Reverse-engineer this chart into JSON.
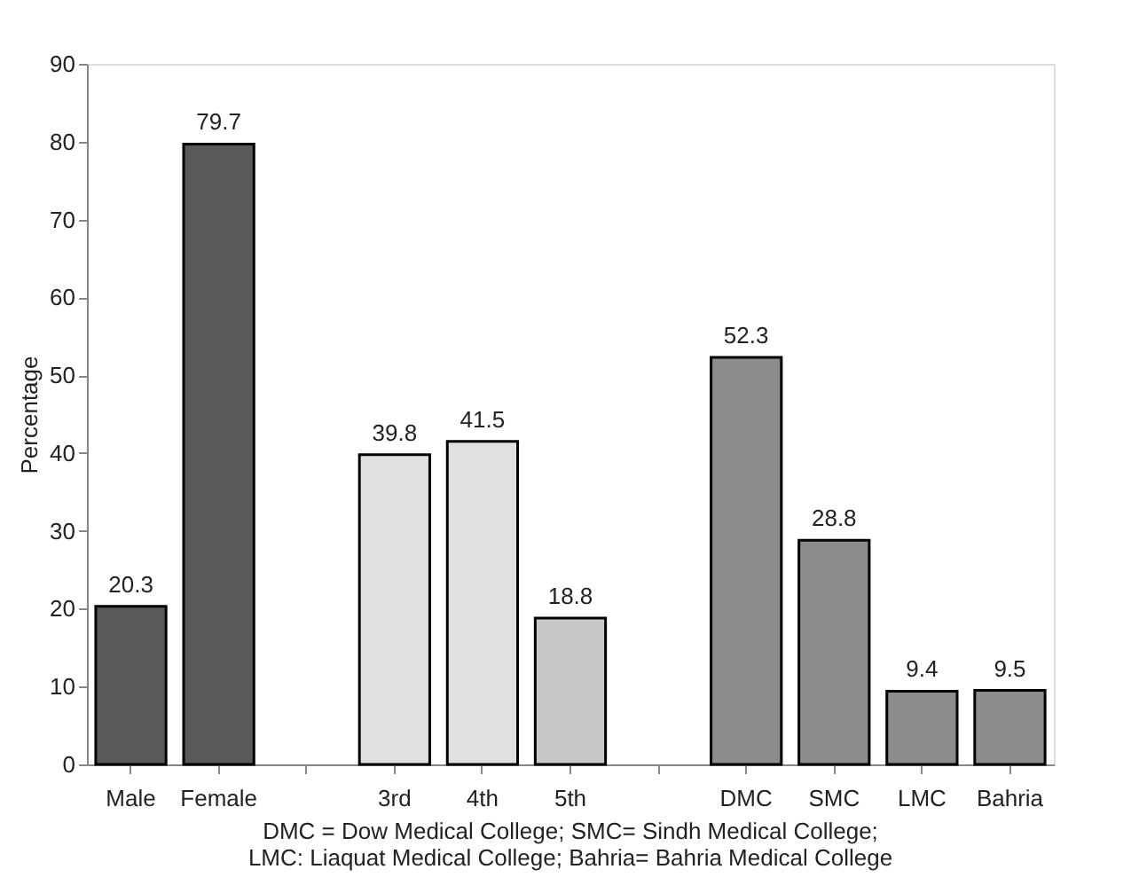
{
  "chart_data": {
    "type": "bar",
    "ylabel": "Percentage",
    "categories": [
      "Male",
      "Female",
      null,
      "3rd",
      "4th",
      "5th",
      null,
      "DMC",
      "SMC",
      "LMC",
      "Bahria"
    ],
    "values": [
      20.3,
      79.7,
      null,
      39.8,
      41.5,
      18.8,
      null,
      52.3,
      28.8,
      9.4,
      9.5
    ],
    "colors": [
      "#595959",
      "#595959",
      null,
      "#e0e0e0",
      "#e0e0e0",
      "#c8c8c8",
      null,
      "#8c8c8c",
      "#8c8c8c",
      "#8c8c8c",
      "#8c8c8c"
    ],
    "ylim": [
      0,
      90
    ],
    "yticks": [
      0,
      10,
      20,
      30,
      40,
      50,
      60,
      70,
      80,
      90
    ],
    "data_labels": true,
    "grid": false,
    "annotations": [
      "DMC = Dow Medical College; SMC= Sindh Medical College;",
      "LMC: Liaquat Medical College; Bahria= Bahria Medical College"
    ]
  }
}
